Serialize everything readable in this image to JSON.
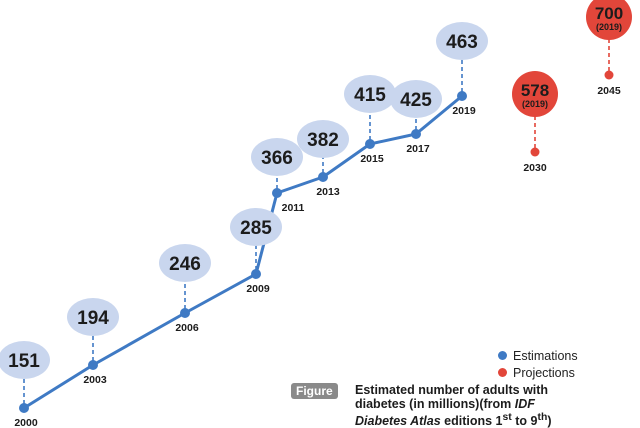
{
  "chart_data": {
    "type": "line",
    "series": [
      {
        "name": "Estimations",
        "color": "#3f7ac4",
        "points": [
          {
            "year": "2000",
            "value": 151
          },
          {
            "year": "2003",
            "value": 194
          },
          {
            "year": "2006",
            "value": 246
          },
          {
            "year": "2009",
            "value": 285
          },
          {
            "year": "2011",
            "value": 366
          },
          {
            "year": "2013",
            "value": 382
          },
          {
            "year": "2015",
            "value": 415
          },
          {
            "year": "2017",
            "value": 425
          },
          {
            "year": "2019",
            "value": 463
          }
        ]
      },
      {
        "name": "Projections",
        "color": "#e2463a",
        "points": [
          {
            "year": "2030",
            "value": 578,
            "note": "(2019)"
          },
          {
            "year": "2045",
            "value": 700,
            "note": "(2019)"
          }
        ]
      }
    ],
    "legend": [
      "Estimations",
      "Projections"
    ],
    "legend_position": "bottom-right",
    "bubble_color": "#c9d6ee"
  },
  "caption": {
    "tag": "Figure",
    "line1": "Estimated number of adults with",
    "line2_pre": "diabetes (in millions)(from ",
    "line2_ital": "IDF",
    "line3_ital": "Diabetes Atlas",
    "line3_post": " editions 1",
    "sup1": "st",
    "line3_to": " to 9",
    "sup2": "th",
    "line3_end": ")"
  }
}
